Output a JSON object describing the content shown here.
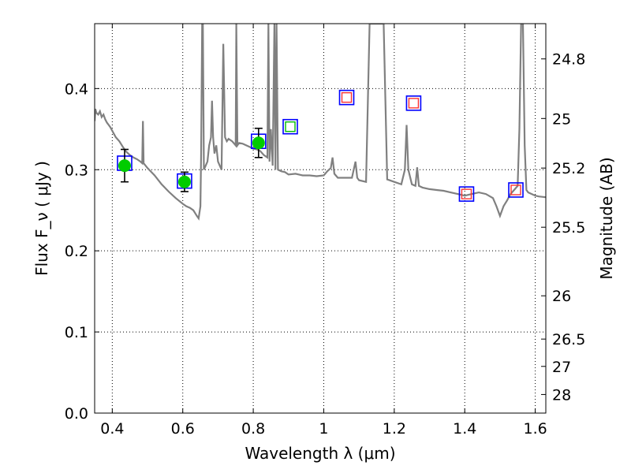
{
  "chart_data": {
    "type": "scatter",
    "xlabel": "Wavelength  λ (μm)",
    "ylabel": "Flux  F_ν  ( μJy )",
    "ylabel_right": "Magnitude (AB)",
    "xlim": [
      0.35,
      1.63
    ],
    "ylim": [
      0.0,
      0.48
    ],
    "grid": true,
    "x_ticks": [
      {
        "value": 0.4,
        "label": "0.4"
      },
      {
        "value": 0.6,
        "label": "0.6"
      },
      {
        "value": 0.8,
        "label": "0.8"
      },
      {
        "value": 1.0,
        "label": "1"
      },
      {
        "value": 1.2,
        "label": "1.2"
      },
      {
        "value": 1.4,
        "label": "1.4"
      },
      {
        "value": 1.6,
        "label": "1.6"
      }
    ],
    "y_ticks": [
      {
        "value": 0.0,
        "label": "0.0"
      },
      {
        "value": 0.1,
        "label": "0.1"
      },
      {
        "value": 0.2,
        "label": "0.2"
      },
      {
        "value": 0.3,
        "label": "0.3"
      },
      {
        "value": 0.4,
        "label": "0.4"
      }
    ],
    "mag_ticks": [
      {
        "value": 24.8,
        "label": "24.8"
      },
      {
        "value": 25.0,
        "label": "25"
      },
      {
        "value": 25.2,
        "label": "25.2"
      },
      {
        "value": 25.5,
        "label": "25.5"
      },
      {
        "value": 26.0,
        "label": "26"
      },
      {
        "value": 26.5,
        "label": "26.5"
      },
      {
        "value": 27.0,
        "label": "27"
      },
      {
        "value": 28.0,
        "label": "28"
      }
    ],
    "colors": {
      "sed": "#808080",
      "observed": "#00cc00",
      "model_box": "#0000ff",
      "synthetic_green": "#00bb00",
      "synthetic_red": "#ff3333",
      "error_bar": "#000000"
    },
    "sed_model": [
      [
        0.35,
        0.36
      ],
      [
        0.352,
        0.375
      ],
      [
        0.355,
        0.37
      ],
      [
        0.36,
        0.368
      ],
      [
        0.365,
        0.372
      ],
      [
        0.37,
        0.365
      ],
      [
        0.375,
        0.368
      ],
      [
        0.38,
        0.362
      ],
      [
        0.385,
        0.358
      ],
      [
        0.39,
        0.355
      ],
      [
        0.395,
        0.352
      ],
      [
        0.4,
        0.348
      ],
      [
        0.41,
        0.34
      ],
      [
        0.42,
        0.335
      ],
      [
        0.43,
        0.328
      ],
      [
        0.44,
        0.322
      ],
      [
        0.45,
        0.318
      ],
      [
        0.46,
        0.315
      ],
      [
        0.47,
        0.313
      ],
      [
        0.48,
        0.31
      ],
      [
        0.485,
        0.308
      ],
      [
        0.487,
        0.36
      ],
      [
        0.489,
        0.308
      ],
      [
        0.5,
        0.302
      ],
      [
        0.52,
        0.293
      ],
      [
        0.54,
        0.282
      ],
      [
        0.56,
        0.273
      ],
      [
        0.58,
        0.265
      ],
      [
        0.6,
        0.258
      ],
      [
        0.61,
        0.255
      ],
      [
        0.62,
        0.253
      ],
      [
        0.63,
        0.25
      ],
      [
        0.64,
        0.243
      ],
      [
        0.645,
        0.24
      ],
      [
        0.65,
        0.255
      ],
      [
        0.652,
        0.32
      ],
      [
        0.655,
        0.48
      ],
      [
        0.657,
        0.48
      ],
      [
        0.66,
        0.3
      ],
      [
        0.665,
        0.305
      ],
      [
        0.67,
        0.31
      ],
      [
        0.675,
        0.33
      ],
      [
        0.68,
        0.34
      ],
      [
        0.683,
        0.385
      ],
      [
        0.686,
        0.34
      ],
      [
        0.69,
        0.32
      ],
      [
        0.695,
        0.33
      ],
      [
        0.7,
        0.31
      ],
      [
        0.71,
        0.3
      ],
      [
        0.715,
        0.455
      ],
      [
        0.72,
        0.34
      ],
      [
        0.725,
        0.335
      ],
      [
        0.73,
        0.338
      ],
      [
        0.74,
        0.335
      ],
      [
        0.75,
        0.33
      ],
      [
        0.752,
        0.48
      ],
      [
        0.755,
        0.33
      ],
      [
        0.76,
        0.333
      ],
      [
        0.77,
        0.332
      ],
      [
        0.78,
        0.33
      ],
      [
        0.79,
        0.328
      ],
      [
        0.8,
        0.326
      ],
      [
        0.81,
        0.325
      ],
      [
        0.82,
        0.323
      ],
      [
        0.83,
        0.318
      ],
      [
        0.84,
        0.315
      ],
      [
        0.843,
        0.48
      ],
      [
        0.846,
        0.31
      ],
      [
        0.85,
        0.35
      ],
      [
        0.855,
        0.305
      ],
      [
        0.86,
        0.48
      ],
      [
        0.863,
        0.3
      ],
      [
        0.866,
        0.48
      ],
      [
        0.87,
        0.3
      ],
      [
        0.88,
        0.298
      ],
      [
        0.89,
        0.297
      ],
      [
        0.9,
        0.294
      ],
      [
        0.92,
        0.295
      ],
      [
        0.94,
        0.293
      ],
      [
        0.96,
        0.293
      ],
      [
        0.98,
        0.292
      ],
      [
        1.0,
        0.293
      ],
      [
        1.01,
        0.298
      ],
      [
        1.02,
        0.302
      ],
      [
        1.025,
        0.315
      ],
      [
        1.03,
        0.295
      ],
      [
        1.04,
        0.29
      ],
      [
        1.06,
        0.29
      ],
      [
        1.08,
        0.29
      ],
      [
        1.09,
        0.31
      ],
      [
        1.095,
        0.29
      ],
      [
        1.1,
        0.287
      ],
      [
        1.12,
        0.285
      ],
      [
        1.13,
        0.48
      ],
      [
        1.14,
        0.48
      ],
      [
        1.17,
        0.48
      ],
      [
        1.18,
        0.288
      ],
      [
        1.2,
        0.285
      ],
      [
        1.22,
        0.282
      ],
      [
        1.23,
        0.3
      ],
      [
        1.235,
        0.355
      ],
      [
        1.24,
        0.3
      ],
      [
        1.25,
        0.282
      ],
      [
        1.26,
        0.28
      ],
      [
        1.265,
        0.303
      ],
      [
        1.27,
        0.28
      ],
      [
        1.28,
        0.278
      ],
      [
        1.3,
        0.276
      ],
      [
        1.32,
        0.275
      ],
      [
        1.34,
        0.274
      ],
      [
        1.36,
        0.272
      ],
      [
        1.38,
        0.27
      ],
      [
        1.4,
        0.268
      ],
      [
        1.42,
        0.27
      ],
      [
        1.44,
        0.272
      ],
      [
        1.46,
        0.27
      ],
      [
        1.48,
        0.265
      ],
      [
        1.49,
        0.255
      ],
      [
        1.5,
        0.243
      ],
      [
        1.51,
        0.255
      ],
      [
        1.52,
        0.262
      ],
      [
        1.53,
        0.27
      ],
      [
        1.54,
        0.275
      ],
      [
        1.55,
        0.28
      ],
      [
        1.555,
        0.35
      ],
      [
        1.56,
        0.48
      ],
      [
        1.565,
        0.48
      ],
      [
        1.57,
        0.33
      ],
      [
        1.575,
        0.275
      ],
      [
        1.58,
        0.272
      ],
      [
        1.59,
        0.27
      ],
      [
        1.6,
        0.268
      ],
      [
        1.61,
        0.267
      ],
      [
        1.63,
        0.266
      ]
    ],
    "observed": [
      {
        "x": 0.435,
        "y": 0.305,
        "yerr": 0.02
      },
      {
        "x": 0.605,
        "y": 0.285,
        "yerr": 0.012
      },
      {
        "x": 0.815,
        "y": 0.333,
        "yerr": 0.018
      }
    ],
    "model_boxes": [
      {
        "x": 0.435,
        "y": 0.308
      },
      {
        "x": 0.605,
        "y": 0.286
      },
      {
        "x": 0.815,
        "y": 0.335
      },
      {
        "x": 0.905,
        "y": 0.353
      },
      {
        "x": 1.065,
        "y": 0.389
      },
      {
        "x": 1.255,
        "y": 0.382
      },
      {
        "x": 1.405,
        "y": 0.27
      },
      {
        "x": 1.545,
        "y": 0.275
      }
    ],
    "synthetic_green": [
      {
        "x": 0.905,
        "y": 0.353
      }
    ],
    "synthetic_red": [
      {
        "x": 1.065,
        "y": 0.389
      },
      {
        "x": 1.255,
        "y": 0.382
      },
      {
        "x": 1.405,
        "y": 0.27
      },
      {
        "x": 1.545,
        "y": 0.275
      }
    ]
  }
}
